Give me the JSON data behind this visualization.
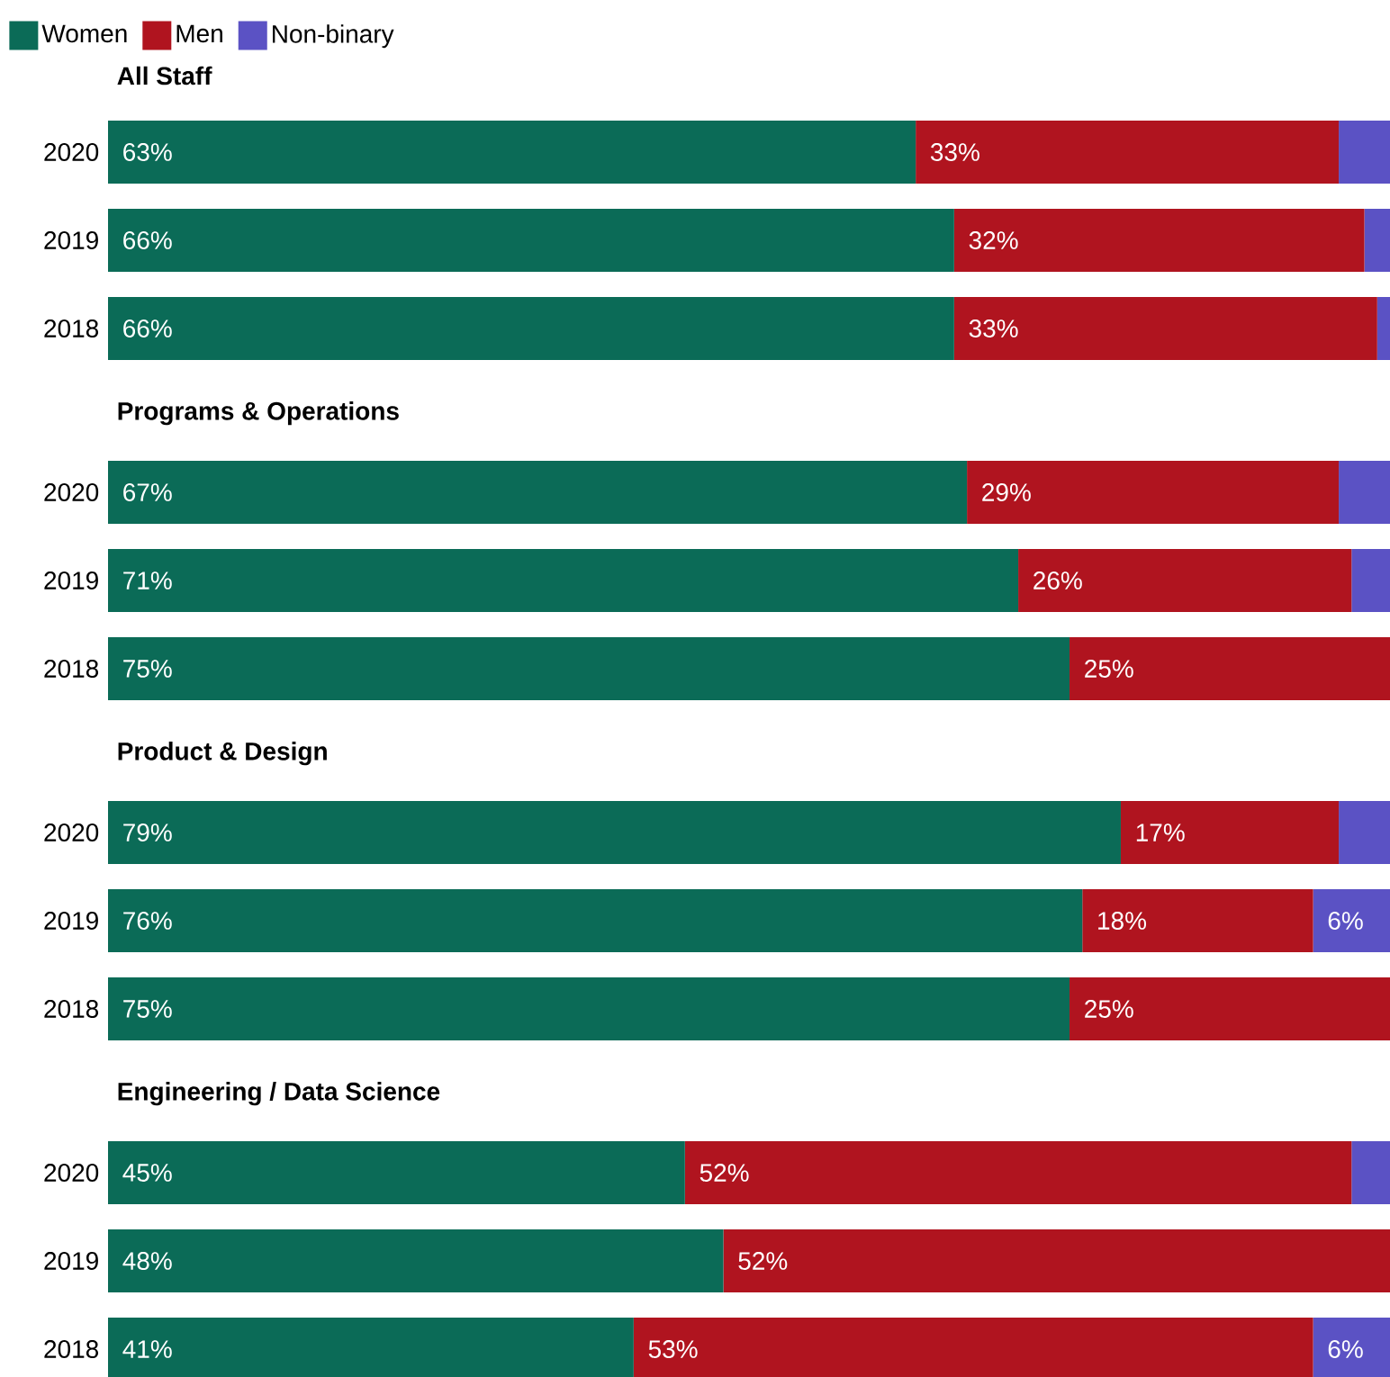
{
  "chart_data": [
    {
      "type": "bar",
      "title": "All Staff",
      "orientation": "horizontal",
      "stacked": true,
      "tick_labels": "y",
      "legend": "top left",
      "categories": [
        "2020",
        "2019",
        "2018"
      ],
      "series": [
        {
          "name": "Women",
          "color": "#0b6b57",
          "values": [
            63,
            66,
            66
          ],
          "value_labels": [
            "63%",
            "66%",
            "66%"
          ]
        },
        {
          "name": "Men",
          "color": "#b0141f",
          "values": [
            33,
            32,
            33
          ],
          "value_labels": [
            "33%",
            "32%",
            "33%"
          ]
        },
        {
          "name": "Non-binary",
          "color": "#5b52c4",
          "values": [
            4,
            2,
            1
          ],
          "value_labels": [
            null,
            null,
            null
          ]
        }
      ]
    },
    {
      "type": "bar",
      "title": "Programs & Operations",
      "orientation": "horizontal",
      "stacked": true,
      "tick_labels": "y",
      "categories": [
        "2020",
        "2019",
        "2018"
      ],
      "series": [
        {
          "color": "#0b6b57",
          "values": [
            67,
            71,
            75
          ],
          "value_labels": [
            "67%",
            "71%",
            "75%"
          ]
        },
        {
          "color": "#b0141f",
          "values": [
            29,
            26,
            25
          ],
          "value_labels": [
            "29%",
            "26%",
            "25%"
          ]
        },
        {
          "color": "#5b52c4",
          "values": [
            4,
            3,
            0
          ],
          "value_labels": [
            null,
            null,
            null
          ]
        }
      ]
    },
    {
      "type": "bar",
      "title": "Product & Design",
      "orientation": "horizontal",
      "stacked": true,
      "tick_labels": "y",
      "categories": [
        "2020",
        "2019",
        "2018"
      ],
      "series": [
        {
          "color": "#0b6b57",
          "values": [
            79,
            76,
            75
          ],
          "value_labels": [
            "79%",
            "76%",
            "75%"
          ]
        },
        {
          "color": "#b0141f",
          "values": [
            17,
            18,
            25
          ],
          "value_labels": [
            "17%",
            "18%",
            "25%"
          ]
        },
        {
          "color": "#5b52c4",
          "values": [
            4,
            6,
            0
          ],
          "value_labels": [
            null,
            "6%",
            null
          ]
        }
      ]
    },
    {
      "type": "bar",
      "title": "Engineering / Data Science",
      "orientation": "horizontal",
      "stacked": true,
      "tick_labels": "y",
      "categories": [
        "2020",
        "2019",
        "2018"
      ],
      "series": [
        {
          "color": "#0b6b57",
          "values": [
            45,
            48,
            41
          ],
          "value_labels": [
            "45%",
            "48%",
            "41%"
          ]
        },
        {
          "color": "#b0141f",
          "values": [
            52,
            52,
            53
          ],
          "value_labels": [
            "52%",
            "52%",
            "53%"
          ]
        },
        {
          "color": "#5b52c4",
          "values": [
            3,
            0,
            6
          ],
          "value_labels": [
            null,
            null,
            "6%"
          ]
        }
      ]
    }
  ]
}
